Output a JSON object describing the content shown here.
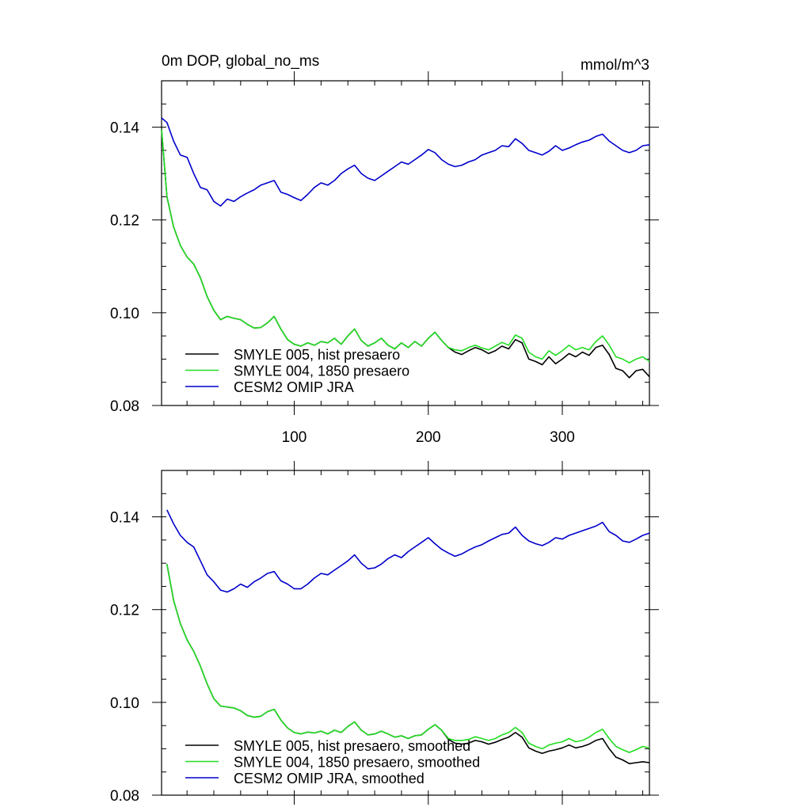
{
  "chart_data": [
    {
      "type": "line",
      "title": "0m DOP, global_no_ms",
      "units": "mmol/m^3",
      "xlim": [
        1,
        365
      ],
      "ylim": [
        0.08,
        0.15
      ],
      "xticks": [
        100,
        200,
        300
      ],
      "xtick_labels": [
        "100",
        "200",
        "300"
      ],
      "yticks": [
        0.08,
        0.1,
        0.12,
        0.14
      ],
      "ytick_labels": [
        "0.08",
        "0.10",
        "0.12",
        "0.14"
      ],
      "legend_position": "bottom-left",
      "series": [
        {
          "name": "SMYLE 005, hist presaero",
          "color": "#000000",
          "x": [
            1,
            5,
            10,
            15,
            20,
            25,
            30,
            35,
            40,
            45,
            50,
            55,
            60,
            65,
            70,
            75,
            80,
            85,
            90,
            95,
            100,
            105,
            110,
            115,
            120,
            125,
            130,
            135,
            140,
            145,
            150,
            155,
            160,
            165,
            170,
            175,
            180,
            185,
            190,
            195,
            200,
            205,
            210,
            215,
            220,
            225,
            230,
            235,
            240,
            245,
            250,
            255,
            260,
            265,
            270,
            275,
            280,
            285,
            290,
            295,
            300,
            305,
            310,
            315,
            320,
            325,
            330,
            335,
            340,
            345,
            350,
            355,
            360,
            365
          ],
          "y": [
            0.1395,
            0.125,
            0.1185,
            0.1145,
            0.112,
            0.1105,
            0.1075,
            0.1035,
            0.1005,
            0.0985,
            0.0992,
            0.0988,
            0.0985,
            0.0975,
            0.0967,
            0.0968,
            0.0978,
            0.0992,
            0.0965,
            0.0942,
            0.0932,
            0.0928,
            0.0935,
            0.093,
            0.0938,
            0.0935,
            0.0945,
            0.0932,
            0.095,
            0.0965,
            0.094,
            0.0928,
            0.0935,
            0.0945,
            0.093,
            0.0922,
            0.0935,
            0.0925,
            0.0938,
            0.0928,
            0.0945,
            0.0958,
            0.094,
            0.0925,
            0.0915,
            0.091,
            0.0918,
            0.0925,
            0.092,
            0.0912,
            0.0918,
            0.0928,
            0.0922,
            0.0942,
            0.0935,
            0.09,
            0.0895,
            0.0888,
            0.0905,
            0.089,
            0.09,
            0.0912,
            0.0905,
            0.0915,
            0.0908,
            0.0925,
            0.093,
            0.091,
            0.088,
            0.0875,
            0.086,
            0.0875,
            0.0878,
            0.0862
          ]
        },
        {
          "name": "SMYLE 004, 1850 presaero",
          "color": "#22dd22",
          "x": [
            1,
            5,
            10,
            15,
            20,
            25,
            30,
            35,
            40,
            45,
            50,
            55,
            60,
            65,
            70,
            75,
            80,
            85,
            90,
            95,
            100,
            105,
            110,
            115,
            120,
            125,
            130,
            135,
            140,
            145,
            150,
            155,
            160,
            165,
            170,
            175,
            180,
            185,
            190,
            195,
            200,
            205,
            210,
            215,
            220,
            225,
            230,
            235,
            240,
            245,
            250,
            255,
            260,
            265,
            270,
            275,
            280,
            285,
            290,
            295,
            300,
            305,
            310,
            315,
            320,
            325,
            330,
            335,
            340,
            345,
            350,
            355,
            360,
            365
          ],
          "y": [
            0.1395,
            0.125,
            0.1185,
            0.1145,
            0.112,
            0.1105,
            0.1075,
            0.1035,
            0.1005,
            0.0985,
            0.0992,
            0.0988,
            0.0985,
            0.0975,
            0.0967,
            0.0968,
            0.0978,
            0.0992,
            0.0965,
            0.0942,
            0.0932,
            0.0928,
            0.0935,
            0.093,
            0.0938,
            0.0935,
            0.0945,
            0.0932,
            0.095,
            0.0965,
            0.094,
            0.0928,
            0.0935,
            0.0945,
            0.093,
            0.0922,
            0.0935,
            0.0925,
            0.0938,
            0.0928,
            0.0945,
            0.0958,
            0.094,
            0.0925,
            0.092,
            0.0918,
            0.0925,
            0.093,
            0.0924,
            0.092,
            0.0928,
            0.0936,
            0.093,
            0.0952,
            0.0945,
            0.0915,
            0.0905,
            0.09,
            0.0918,
            0.0908,
            0.0918,
            0.093,
            0.092,
            0.0925,
            0.092,
            0.0938,
            0.095,
            0.093,
            0.0905,
            0.09,
            0.0892,
            0.09,
            0.0905,
            0.0895
          ]
        },
        {
          "name": "CESM2 OMIP JRA",
          "color": "#0000cc",
          "x": [
            1,
            5,
            10,
            15,
            20,
            25,
            30,
            35,
            40,
            45,
            50,
            55,
            60,
            65,
            70,
            75,
            80,
            85,
            90,
            95,
            100,
            105,
            110,
            115,
            120,
            125,
            130,
            135,
            140,
            145,
            150,
            155,
            160,
            165,
            170,
            175,
            180,
            185,
            190,
            195,
            200,
            205,
            210,
            215,
            220,
            225,
            230,
            235,
            240,
            245,
            250,
            255,
            260,
            265,
            270,
            275,
            280,
            285,
            290,
            295,
            300,
            305,
            310,
            315,
            320,
            325,
            330,
            335,
            340,
            345,
            350,
            355,
            360,
            365
          ],
          "y": [
            0.142,
            0.141,
            0.137,
            0.134,
            0.1335,
            0.13,
            0.127,
            0.1265,
            0.124,
            0.123,
            0.1245,
            0.124,
            0.125,
            0.1258,
            0.1265,
            0.1275,
            0.128,
            0.1285,
            0.126,
            0.1255,
            0.1248,
            0.1242,
            0.1255,
            0.127,
            0.128,
            0.1275,
            0.1285,
            0.13,
            0.131,
            0.1318,
            0.13,
            0.129,
            0.1285,
            0.1295,
            0.1305,
            0.1315,
            0.1325,
            0.132,
            0.133,
            0.134,
            0.1352,
            0.1345,
            0.133,
            0.132,
            0.1315,
            0.1318,
            0.1325,
            0.133,
            0.134,
            0.1345,
            0.135,
            0.136,
            0.1358,
            0.1375,
            0.1365,
            0.135,
            0.1345,
            0.134,
            0.1348,
            0.136,
            0.135,
            0.1355,
            0.1362,
            0.1368,
            0.1372,
            0.138,
            0.1385,
            0.137,
            0.136,
            0.135,
            0.1345,
            0.135,
            0.136,
            0.1362
          ]
        }
      ]
    },
    {
      "type": "line",
      "title": "",
      "units": "",
      "xlim": [
        1,
        365
      ],
      "ylim": [
        0.08,
        0.15
      ],
      "xticks": [
        100,
        200,
        300
      ],
      "xtick_labels": [],
      "yticks": [
        0.08,
        0.1,
        0.12,
        0.14
      ],
      "ytick_labels": [
        "0.08",
        "0.10",
        "0.12",
        "0.14"
      ],
      "legend_position": "bottom-left",
      "series": [
        {
          "name": "SMYLE 005, hist presaero, smoothed",
          "color": "#000000",
          "x": [
            5,
            10,
            15,
            20,
            25,
            30,
            35,
            40,
            45,
            50,
            55,
            60,
            65,
            70,
            75,
            80,
            85,
            90,
            95,
            100,
            105,
            110,
            115,
            120,
            125,
            130,
            135,
            140,
            145,
            150,
            155,
            160,
            165,
            170,
            175,
            180,
            185,
            190,
            195,
            200,
            205,
            210,
            215,
            220,
            225,
            230,
            235,
            240,
            245,
            250,
            255,
            260,
            265,
            270,
            275,
            280,
            285,
            290,
            295,
            300,
            305,
            310,
            315,
            320,
            325,
            330,
            335,
            340,
            345,
            350,
            355,
            360,
            365
          ],
          "y": [
            0.1298,
            0.122,
            0.117,
            0.1135,
            0.111,
            0.1078,
            0.104,
            0.1008,
            0.0992,
            0.099,
            0.0988,
            0.0982,
            0.0972,
            0.0968,
            0.097,
            0.098,
            0.0985,
            0.0962,
            0.0945,
            0.0935,
            0.0932,
            0.0936,
            0.0934,
            0.0938,
            0.0932,
            0.094,
            0.0935,
            0.0948,
            0.0958,
            0.094,
            0.093,
            0.0932,
            0.0938,
            0.0932,
            0.0925,
            0.0928,
            0.0922,
            0.0928,
            0.093,
            0.0942,
            0.0952,
            0.094,
            0.092,
            0.0912,
            0.091,
            0.0912,
            0.0918,
            0.0915,
            0.091,
            0.0914,
            0.092,
            0.0925,
            0.0935,
            0.0925,
            0.0902,
            0.0895,
            0.089,
            0.0895,
            0.0898,
            0.0902,
            0.0908,
            0.0902,
            0.0905,
            0.091,
            0.0918,
            0.0922,
            0.09,
            0.0882,
            0.0876,
            0.0868,
            0.087,
            0.0872,
            0.087
          ]
        },
        {
          "name": "SMYLE 004, 1850 presaero, smoothed",
          "color": "#22dd22",
          "x": [
            5,
            10,
            15,
            20,
            25,
            30,
            35,
            40,
            45,
            50,
            55,
            60,
            65,
            70,
            75,
            80,
            85,
            90,
            95,
            100,
            105,
            110,
            115,
            120,
            125,
            130,
            135,
            140,
            145,
            150,
            155,
            160,
            165,
            170,
            175,
            180,
            185,
            190,
            195,
            200,
            205,
            210,
            215,
            220,
            225,
            230,
            235,
            240,
            245,
            250,
            255,
            260,
            265,
            270,
            275,
            280,
            285,
            290,
            295,
            300,
            305,
            310,
            315,
            320,
            325,
            330,
            335,
            340,
            345,
            350,
            355,
            360,
            365
          ],
          "y": [
            0.1298,
            0.122,
            0.117,
            0.1135,
            0.111,
            0.1078,
            0.104,
            0.1008,
            0.0992,
            0.099,
            0.0988,
            0.0982,
            0.0972,
            0.0968,
            0.097,
            0.098,
            0.0985,
            0.0962,
            0.0945,
            0.0935,
            0.0932,
            0.0936,
            0.0934,
            0.0938,
            0.0932,
            0.094,
            0.0935,
            0.0948,
            0.0958,
            0.094,
            0.093,
            0.0932,
            0.0938,
            0.0932,
            0.0925,
            0.0928,
            0.0922,
            0.0928,
            0.093,
            0.0942,
            0.0952,
            0.094,
            0.0922,
            0.0918,
            0.0918,
            0.092,
            0.0926,
            0.0922,
            0.0918,
            0.0922,
            0.093,
            0.0935,
            0.0946,
            0.0935,
            0.0912,
            0.0905,
            0.09,
            0.0908,
            0.0912,
            0.0915,
            0.0922,
            0.0915,
            0.0918,
            0.0925,
            0.0935,
            0.0942,
            0.0922,
            0.0905,
            0.0898,
            0.0892,
            0.0898,
            0.0905,
            0.0902
          ]
        },
        {
          "name": "CESM2 OMIP JRA, smoothed",
          "color": "#0000cc",
          "x": [
            5,
            10,
            15,
            20,
            25,
            30,
            35,
            40,
            45,
            50,
            55,
            60,
            65,
            70,
            75,
            80,
            85,
            90,
            95,
            100,
            105,
            110,
            115,
            120,
            125,
            130,
            135,
            140,
            145,
            150,
            155,
            160,
            165,
            170,
            175,
            180,
            185,
            190,
            195,
            200,
            205,
            210,
            215,
            220,
            225,
            230,
            235,
            240,
            245,
            250,
            255,
            260,
            265,
            270,
            275,
            280,
            285,
            290,
            295,
            300,
            305,
            310,
            315,
            320,
            325,
            330,
            335,
            340,
            345,
            350,
            355,
            360,
            365
          ],
          "y": [
            0.1415,
            0.1385,
            0.136,
            0.1345,
            0.1335,
            0.1305,
            0.1275,
            0.126,
            0.1242,
            0.1238,
            0.1245,
            0.1255,
            0.1248,
            0.126,
            0.1268,
            0.1278,
            0.1282,
            0.1262,
            0.1255,
            0.1245,
            0.1245,
            0.1255,
            0.1268,
            0.1278,
            0.1275,
            0.1285,
            0.1295,
            0.1305,
            0.1318,
            0.13,
            0.1288,
            0.129,
            0.1298,
            0.131,
            0.1318,
            0.1312,
            0.1325,
            0.1335,
            0.1345,
            0.1355,
            0.1342,
            0.133,
            0.1322,
            0.1315,
            0.132,
            0.1328,
            0.1335,
            0.134,
            0.1348,
            0.1355,
            0.1362,
            0.1365,
            0.1378,
            0.136,
            0.1348,
            0.1342,
            0.1338,
            0.1345,
            0.1355,
            0.1352,
            0.136,
            0.1365,
            0.137,
            0.1375,
            0.138,
            0.1388,
            0.1368,
            0.136,
            0.1348,
            0.1345,
            0.1352,
            0.136,
            0.1365
          ]
        }
      ]
    }
  ]
}
